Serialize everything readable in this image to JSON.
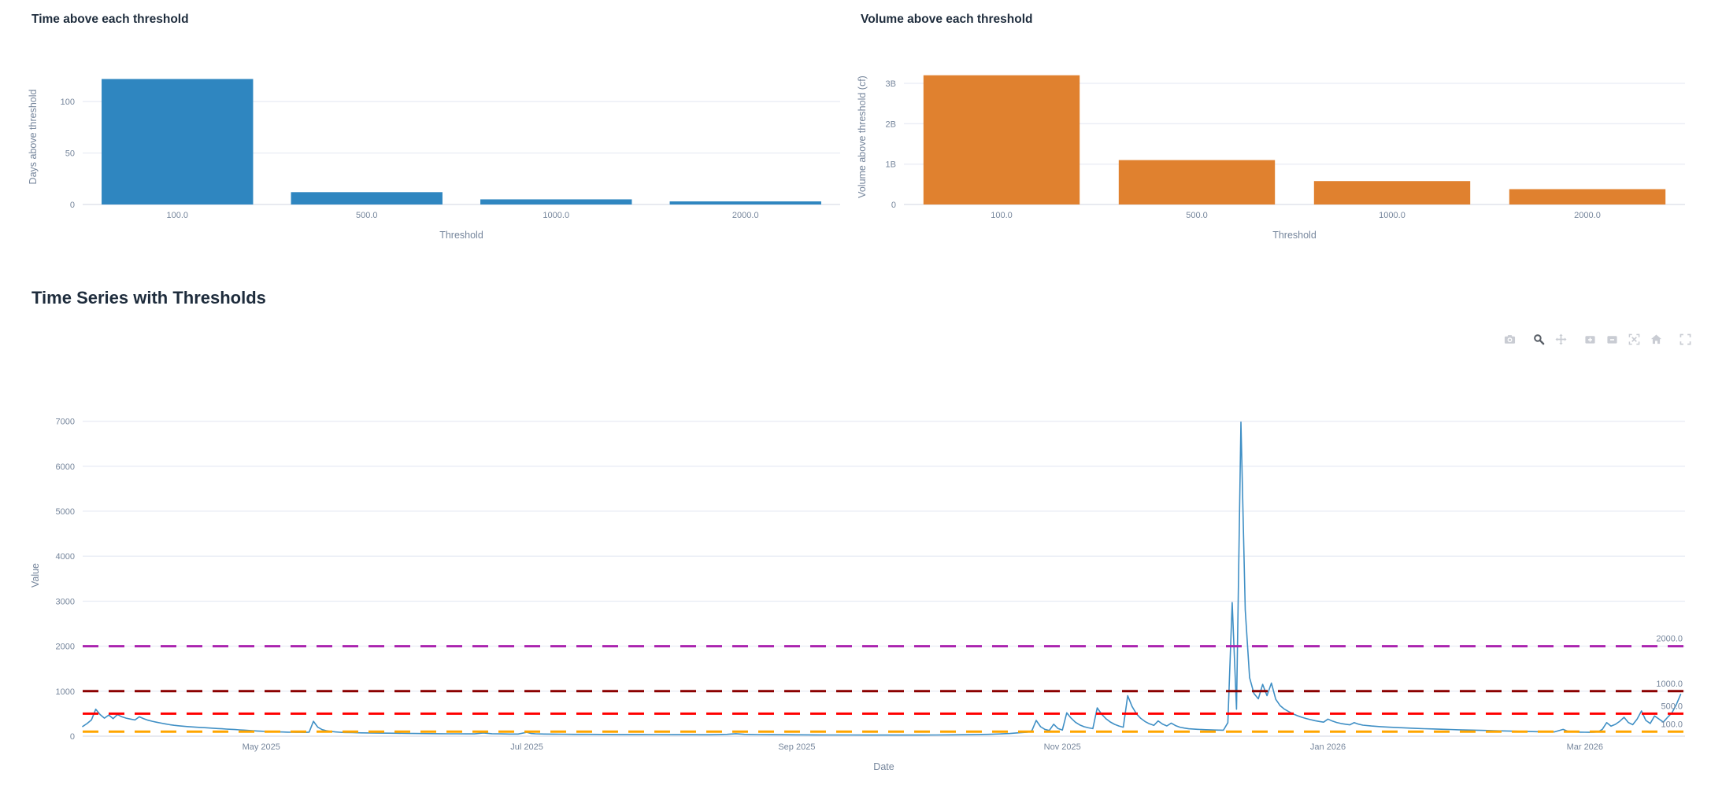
{
  "section": {
    "title": "Time Series with Thresholds"
  },
  "colors": {
    "bar_blue": "#2f86c0",
    "bar_orange": "#e0812f",
    "line_blue": "#3f8fc5",
    "grid": "#eaedf5",
    "axis_line": "#e0e3ec",
    "tick_text": "#76869c",
    "title_text": "#1e2c3c",
    "modebar_icon": "#c9ccd3",
    "modebar_icon_active": "#5a6068"
  },
  "modebar": {
    "active": "zoom",
    "icons": [
      {
        "name": "camera"
      },
      {
        "name": "zoom"
      },
      {
        "name": "pan"
      },
      {
        "name": "zoom-in"
      },
      {
        "name": "zoom-out"
      },
      {
        "name": "autoscale"
      },
      {
        "name": "reset-axes-home"
      },
      {
        "name": "fullscreen"
      }
    ]
  },
  "chart_data": [
    {
      "id": "days",
      "type": "bar",
      "title": "Time above each threshold",
      "xlabel": "Threshold",
      "ylabel": "Days above threshold",
      "categories": [
        "100.0",
        "500.0",
        "1000.0",
        "2000.0"
      ],
      "values": [
        122,
        12,
        5,
        3
      ],
      "ylim": [
        0,
        131.5
      ],
      "yticks": [
        0,
        50,
        100
      ],
      "ytick_labels": [
        "0",
        "50",
        "100"
      ],
      "grid": true,
      "bar_color": "#2f86c0"
    },
    {
      "id": "volume",
      "type": "bar",
      "title": "Volume above each threshold",
      "xlabel": "Threshold",
      "ylabel": "Volume above threshold (cf)",
      "categories": [
        "100.0",
        "500.0",
        "1000.0",
        "2000.0"
      ],
      "values": [
        3200000000,
        1100000000,
        580000000,
        380000000
      ],
      "ylim": [
        0,
        3350000000
      ],
      "yticks": [
        0,
        1000000000,
        2000000000,
        3000000000
      ],
      "ytick_labels": [
        "0",
        "1B",
        "2B",
        "3B"
      ],
      "grid": true,
      "bar_color": "#e0812f"
    },
    {
      "id": "timeseries",
      "type": "line",
      "title": "Time Series with Thresholds",
      "xlabel": "Date",
      "ylabel": "Value",
      "line_color": "#3f8fc5",
      "ylim": [
        0,
        7150
      ],
      "yticks": [
        0,
        1000,
        2000,
        3000,
        4000,
        5000,
        6000,
        7000
      ],
      "ytick_labels": [
        "0",
        "1000",
        "2000",
        "3000",
        "4000",
        "5000",
        "6000",
        "7000"
      ],
      "x_span_days": 368,
      "x_start": "2025-03-21",
      "xticks": [
        {
          "pos": 41,
          "label": "May 2025"
        },
        {
          "pos": 102,
          "label": "Jul 2025"
        },
        {
          "pos": 164,
          "label": "Sep 2025"
        },
        {
          "pos": 225,
          "label": "Nov 2025"
        },
        {
          "pos": 286,
          "label": "Jan 2026"
        },
        {
          "pos": 345,
          "label": "Mar 2026"
        }
      ],
      "grid": true,
      "legend": "none",
      "thresholds": [
        {
          "value": 100,
          "label": "100.0",
          "color": "#ffa500"
        },
        {
          "value": 500,
          "label": "500.0",
          "color": "#ff0000"
        },
        {
          "value": 1000,
          "label": "1000.0",
          "color": "#8b0000"
        },
        {
          "value": 2000,
          "label": "2000.0",
          "color": "#aa23af"
        }
      ],
      "points": [
        [
          0,
          215
        ],
        [
          1,
          280
        ],
        [
          2,
          360
        ],
        [
          3,
          600
        ],
        [
          4,
          480
        ],
        [
          5,
          400
        ],
        [
          6,
          470
        ],
        [
          7,
          390
        ],
        [
          8,
          480
        ],
        [
          9,
          430
        ],
        [
          10,
          400
        ],
        [
          11,
          380
        ],
        [
          12,
          360
        ],
        [
          13,
          430
        ],
        [
          14,
          390
        ],
        [
          15,
          355
        ],
        [
          16,
          330
        ],
        [
          17,
          310
        ],
        [
          18,
          290
        ],
        [
          19,
          272
        ],
        [
          20,
          256
        ],
        [
          21,
          242
        ],
        [
          22,
          230
        ],
        [
          23,
          222
        ],
        [
          24,
          214
        ],
        [
          25,
          207
        ],
        [
          26,
          200
        ],
        [
          27,
          194
        ],
        [
          28,
          188
        ],
        [
          29,
          182
        ],
        [
          30,
          176
        ],
        [
          31,
          170
        ],
        [
          32,
          164
        ],
        [
          33,
          158
        ],
        [
          34,
          152
        ],
        [
          35,
          146
        ],
        [
          36,
          140
        ],
        [
          37,
          134
        ],
        [
          38,
          128
        ],
        [
          39,
          122
        ],
        [
          40,
          116
        ],
        [
          41,
          110
        ],
        [
          42,
          105
        ],
        [
          43,
          101
        ],
        [
          44,
          98
        ],
        [
          45,
          95
        ],
        [
          46,
          92
        ],
        [
          47,
          90
        ],
        [
          48,
          88
        ],
        [
          49,
          86
        ],
        [
          50,
          85
        ],
        [
          51,
          84
        ],
        [
          52,
          90
        ],
        [
          53,
          330
        ],
        [
          54,
          200
        ],
        [
          55,
          145
        ],
        [
          56,
          120
        ],
        [
          57,
          105
        ],
        [
          58,
          95
        ],
        [
          59,
          88
        ],
        [
          60,
          83
        ],
        [
          62,
          78
        ],
        [
          64,
          74
        ],
        [
          66,
          71
        ],
        [
          68,
          68
        ],
        [
          70,
          66
        ],
        [
          72,
          64
        ],
        [
          74,
          62
        ],
        [
          76,
          60
        ],
        [
          78,
          58
        ],
        [
          80,
          56
        ],
        [
          82,
          54
        ],
        [
          84,
          53
        ],
        [
          86,
          52
        ],
        [
          88,
          51
        ],
        [
          90,
          50
        ],
        [
          92,
          72
        ],
        [
          94,
          55
        ],
        [
          96,
          50
        ],
        [
          98,
          48
        ],
        [
          100,
          47
        ],
        [
          102,
          85
        ],
        [
          103,
          60
        ],
        [
          104,
          52
        ],
        [
          106,
          48
        ],
        [
          108,
          45
        ],
        [
          110,
          43
        ],
        [
          113,
          41
        ],
        [
          116,
          40
        ],
        [
          120,
          38
        ],
        [
          124,
          37
        ],
        [
          128,
          36
        ],
        [
          132,
          35
        ],
        [
          136,
          34
        ],
        [
          140,
          33
        ],
        [
          144,
          32
        ],
        [
          148,
          40
        ],
        [
          150,
          55
        ],
        [
          152,
          40
        ],
        [
          155,
          35
        ],
        [
          158,
          33
        ],
        [
          161,
          31
        ],
        [
          164,
          30
        ],
        [
          168,
          28
        ],
        [
          172,
          27
        ],
        [
          176,
          26
        ],
        [
          180,
          25
        ],
        [
          184,
          24
        ],
        [
          188,
          24
        ],
        [
          192,
          25
        ],
        [
          196,
          27
        ],
        [
          200,
          30
        ],
        [
          204,
          34
        ],
        [
          208,
          40
        ],
        [
          211,
          50
        ],
        [
          213,
          60
        ],
        [
          215,
          75
        ],
        [
          217,
          90
        ],
        [
          218,
          120
        ],
        [
          219,
          350
        ],
        [
          220,
          210
        ],
        [
          221,
          150
        ],
        [
          222,
          125
        ],
        [
          223,
          265
        ],
        [
          224,
          170
        ],
        [
          225,
          135
        ],
        [
          226,
          520
        ],
        [
          227,
          400
        ],
        [
          228,
          310
        ],
        [
          229,
          250
        ],
        [
          230,
          210
        ],
        [
          231,
          185
        ],
        [
          232,
          168
        ],
        [
          233,
          630
        ],
        [
          234,
          490
        ],
        [
          235,
          390
        ],
        [
          236,
          315
        ],
        [
          237,
          262
        ],
        [
          238,
          225
        ],
        [
          239,
          200
        ],
        [
          240,
          900
        ],
        [
          241,
          660
        ],
        [
          242,
          500
        ],
        [
          243,
          395
        ],
        [
          244,
          325
        ],
        [
          245,
          275
        ],
        [
          246,
          240
        ],
        [
          247,
          340
        ],
        [
          248,
          270
        ],
        [
          249,
          228
        ],
        [
          250,
          290
        ],
        [
          251,
          235
        ],
        [
          252,
          200
        ],
        [
          253,
          180
        ],
        [
          254,
          165
        ],
        [
          256,
          152
        ],
        [
          258,
          143
        ],
        [
          260,
          137
        ],
        [
          262,
          132
        ],
        [
          263,
          300
        ],
        [
          264,
          2970
        ],
        [
          265,
          600
        ],
        [
          266,
          6980
        ],
        [
          267,
          2800
        ],
        [
          268,
          1300
        ],
        [
          269,
          950
        ],
        [
          270,
          830
        ],
        [
          271,
          1150
        ],
        [
          272,
          900
        ],
        [
          273,
          1180
        ],
        [
          274,
          820
        ],
        [
          275,
          680
        ],
        [
          276,
          600
        ],
        [
          277,
          545
        ],
        [
          278,
          495
        ],
        [
          279,
          455
        ],
        [
          280,
          420
        ],
        [
          281,
          392
        ],
        [
          282,
          367
        ],
        [
          283,
          345
        ],
        [
          284,
          327
        ],
        [
          285,
          312
        ],
        [
          286,
          380
        ],
        [
          287,
          335
        ],
        [
          288,
          305
        ],
        [
          289,
          282
        ],
        [
          290,
          265
        ],
        [
          291,
          252
        ],
        [
          292,
          300
        ],
        [
          293,
          268
        ],
        [
          294,
          245
        ],
        [
          296,
          226
        ],
        [
          298,
          212
        ],
        [
          300,
          200
        ],
        [
          302,
          190
        ],
        [
          304,
          181
        ],
        [
          306,
          173
        ],
        [
          308,
          166
        ],
        [
          310,
          160
        ],
        [
          312,
          154
        ],
        [
          314,
          148
        ],
        [
          316,
          142
        ],
        [
          318,
          137
        ],
        [
          320,
          132
        ],
        [
          322,
          127
        ],
        [
          324,
          122
        ],
        [
          326,
          117
        ],
        [
          328,
          112
        ],
        [
          330,
          108
        ],
        [
          332,
          104
        ],
        [
          334,
          100
        ],
        [
          336,
          97
        ],
        [
          338,
          94
        ],
        [
          340,
          150
        ],
        [
          341,
          112
        ],
        [
          342,
          97
        ],
        [
          343,
          92
        ],
        [
          344,
          89
        ],
        [
          345,
          87
        ],
        [
          346,
          86
        ],
        [
          347,
          88
        ],
        [
          348,
          95
        ],
        [
          349,
          150
        ],
        [
          350,
          300
        ],
        [
          351,
          222
        ],
        [
          352,
          262
        ],
        [
          353,
          330
        ],
        [
          354,
          420
        ],
        [
          355,
          302
        ],
        [
          356,
          256
        ],
        [
          357,
          380
        ],
        [
          358,
          560
        ],
        [
          359,
          352
        ],
        [
          360,
          282
        ],
        [
          361,
          450
        ],
        [
          362,
          382
        ],
        [
          363,
          312
        ],
        [
          364,
          420
        ],
        [
          365,
          520
        ],
        [
          366,
          700
        ],
        [
          367,
          930
        ]
      ]
    }
  ]
}
